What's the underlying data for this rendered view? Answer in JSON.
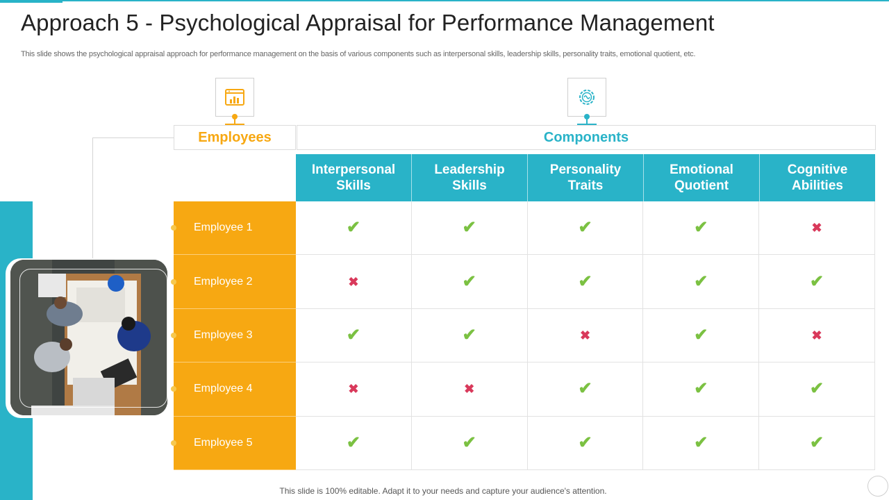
{
  "slide": {
    "title": "Approach 5 - Psychological Appraisal for Performance Management",
    "subtitle": "This slide shows the psychological appraisal approach for performance management on the basis of various components such as interpersonal skills, leadership skills, personality traits, emotional quotient, etc.",
    "footer": "This slide is 100% editable. Adapt it to your needs and capture your audience's attention."
  },
  "headers": {
    "employees": "Employees",
    "components": "Components"
  },
  "columns": [
    {
      "line1": "Interpersonal",
      "line2": "Skills"
    },
    {
      "line1": "Leadership",
      "line2": "Skills"
    },
    {
      "line1": "Personality",
      "line2": "Traits"
    },
    {
      "line1": "Emotional",
      "line2": "Quotient"
    },
    {
      "line1": "Cognitive",
      "line2": "Abilities"
    }
  ],
  "rows": [
    {
      "name": "Employee 1",
      "values": [
        "check",
        "check",
        "check",
        "check",
        "cross"
      ]
    },
    {
      "name": "Employee 2",
      "values": [
        "cross",
        "check",
        "check",
        "check",
        "check"
      ]
    },
    {
      "name": "Employee 3",
      "values": [
        "check",
        "check",
        "cross",
        "check",
        "cross"
      ]
    },
    {
      "name": "Employee 4",
      "values": [
        "cross",
        "cross",
        "check",
        "check",
        "check"
      ]
    },
    {
      "name": "Employee 5",
      "values": [
        "check",
        "check",
        "check",
        "check",
        "check"
      ]
    }
  ],
  "icons": {
    "employees": "dashboard-chart-icon",
    "components": "gear-brain-icon",
    "check": "check-mark-icon",
    "cross": "cross-mark-icon"
  },
  "colors": {
    "accent_teal": "#29b3c8",
    "accent_orange": "#f7a812",
    "check": "#7bc142",
    "cross": "#d9395b"
  }
}
